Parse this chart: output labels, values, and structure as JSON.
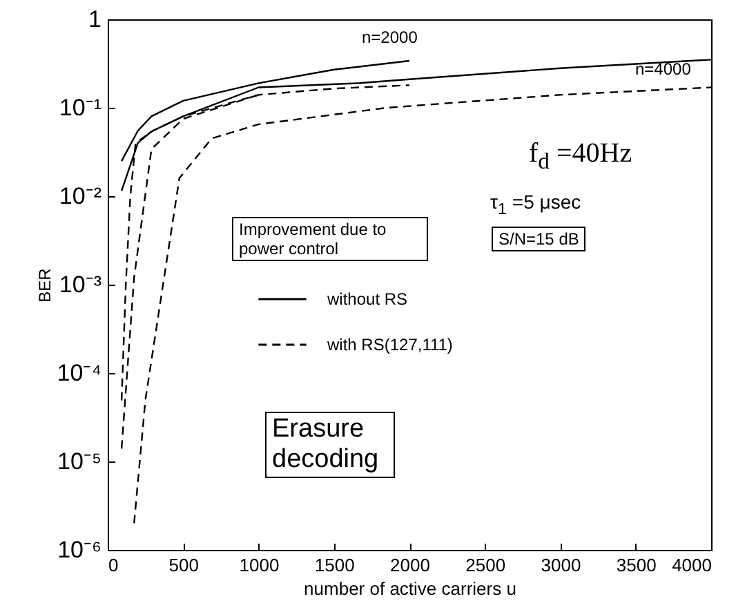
{
  "chart_data": {
    "type": "line",
    "xlabel": "number of active carriers     u",
    "ylabel": "BER",
    "log": "y",
    "grid": false,
    "legend": "left",
    "xlim": [
      0,
      4000
    ],
    "xticks": [
      0,
      500,
      1000,
      1500,
      2000,
      2500,
      3000,
      3500,
      4000
    ],
    "ylim": [
      1e-06,
      1
    ],
    "yticks": [
      {
        "value": 1e-06,
        "label": "10⁻⁶"
      },
      {
        "value": 1e-05,
        "label": "10⁻⁵"
      },
      {
        "value": 0.0001,
        "label": "10⁻⁴"
      },
      {
        "value": 0.001,
        "label": "10⁻³"
      },
      {
        "value": 0.01,
        "label": "10⁻²"
      },
      {
        "value": 0.1,
        "label": "10⁻¹"
      },
      {
        "value": 1,
        "label": "1"
      }
    ],
    "series": [
      {
        "name": "without RS",
        "color": "#000000",
        "line_style": "solid",
        "x": [
          92,
          200,
          290,
          500,
          1000,
          1500,
          2000
        ],
        "values": [
          0.025,
          0.055,
          0.08,
          0.12,
          0.19,
          0.27,
          0.34
        ]
      },
      {
        "color": "#000000",
        "line_style": "solid",
        "x": [
          92,
          200,
          290,
          500,
          1000,
          1670,
          2000,
          3000,
          4000
        ],
        "values": [
          0.0115,
          0.04,
          0.054,
          0.08,
          0.17,
          0.19,
          0.21,
          0.28,
          0.35
        ]
      },
      {
        "name": "with RS(127,111)",
        "color": "#000000",
        "line_style": "dashed",
        "x": [
          92,
          120,
          150,
          185,
          300,
          500,
          1000,
          1500,
          2000
        ],
        "values": [
          4.9e-05,
          0.001,
          0.01,
          0.04,
          0.055,
          0.08,
          0.14,
          0.165,
          0.18
        ]
      },
      {
        "color": "#000000",
        "line_style": "dashed",
        "x": [
          92,
          175,
          290,
          500,
          1000
        ],
        "values": [
          1.4e-05,
          0.0012,
          0.034,
          0.075,
          0.14
        ]
      },
      {
        "color": "#000000",
        "line_style": "dashed",
        "x": [
          175,
          250,
          475,
          690,
          1000,
          1850,
          3000,
          4000
        ],
        "values": [
          2e-06,
          5e-05,
          0.016,
          0.045,
          0.065,
          0.1,
          0.14,
          0.17
        ]
      }
    ],
    "annotations": [
      "n=2000",
      "n=4000",
      "Improvement due to power control",
      "f$_{d}$ =40Hz",
      "τ$_{1}$ =5 μsec",
      "S/N=15 dB",
      "Erasure decoding"
    ]
  }
}
